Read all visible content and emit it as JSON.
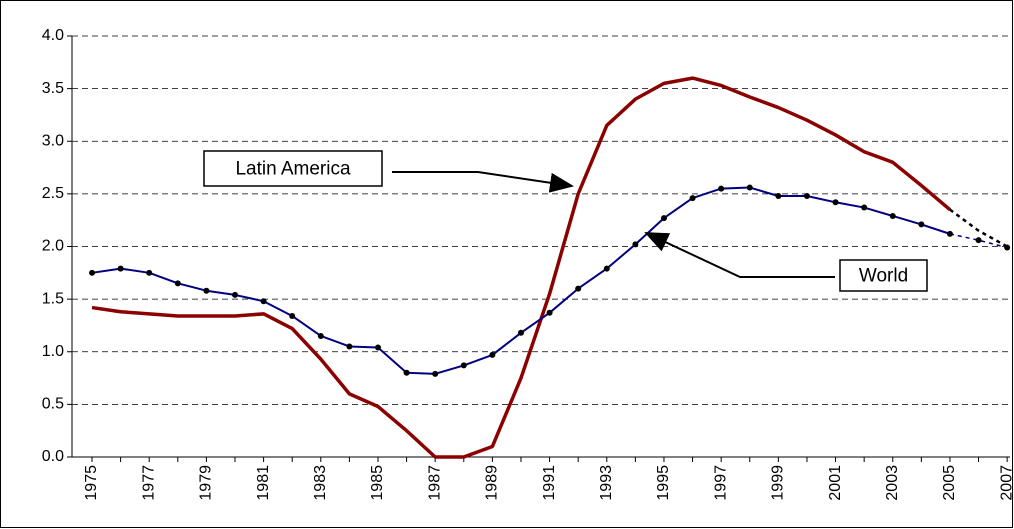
{
  "chart_data": {
    "type": "line",
    "x": [
      1975,
      1976,
      1977,
      1978,
      1979,
      1980,
      1981,
      1982,
      1983,
      1984,
      1985,
      1986,
      1987,
      1988,
      1989,
      1990,
      1991,
      1992,
      1993,
      1994,
      1995,
      1996,
      1997,
      1998,
      1999,
      2000,
      2001,
      2002,
      2003,
      2004,
      2005,
      2006,
      2007
    ],
    "series": [
      {
        "name": "Latin America",
        "color": "#8b0000",
        "markers": false,
        "values": [
          1.42,
          1.38,
          1.36,
          1.34,
          1.34,
          1.34,
          1.36,
          1.22,
          0.93,
          0.6,
          0.48,
          0.25,
          0.0,
          0.0,
          0.1,
          0.75,
          1.55,
          2.5,
          3.15,
          3.4,
          3.55,
          3.6,
          3.53,
          3.42,
          3.32,
          3.2,
          3.06,
          2.9,
          2.8,
          2.58,
          2.35,
          2.15,
          2.0
        ]
      },
      {
        "name": "World",
        "color": "#000080",
        "markers": true,
        "values": [
          1.75,
          1.79,
          1.75,
          1.65,
          1.58,
          1.54,
          1.48,
          1.34,
          1.15,
          1.05,
          1.04,
          0.8,
          0.79,
          0.87,
          0.97,
          1.18,
          1.37,
          1.6,
          1.79,
          2.02,
          2.27,
          2.46,
          2.55,
          2.56,
          2.48,
          2.48,
          2.42,
          2.37,
          2.29,
          2.21,
          2.12,
          2.06,
          1.99
        ]
      }
    ],
    "projected_from": 2005,
    "xlim": [
      1974.3,
      2007.1
    ],
    "xticks": [
      1975,
      1977,
      1979,
      1981,
      1983,
      1985,
      1987,
      1989,
      1991,
      1993,
      1995,
      1997,
      1999,
      2001,
      2003,
      2005,
      2007
    ],
    "ylim": [
      0,
      4
    ],
    "yticks": [
      {
        "value": 0,
        "label": "0.0"
      },
      0.5,
      {
        "value": 1,
        "label": "1.0"
      },
      1.5,
      {
        "value": 2,
        "label": "2.0"
      },
      2.5,
      {
        "value": 3,
        "label": "3.0"
      },
      3.5,
      {
        "value": 4,
        "label": "4.0"
      }
    ],
    "grid": true,
    "annotations": [
      {
        "text": "Latin America",
        "series": 0
      },
      {
        "text": "World",
        "series": 1
      }
    ]
  }
}
